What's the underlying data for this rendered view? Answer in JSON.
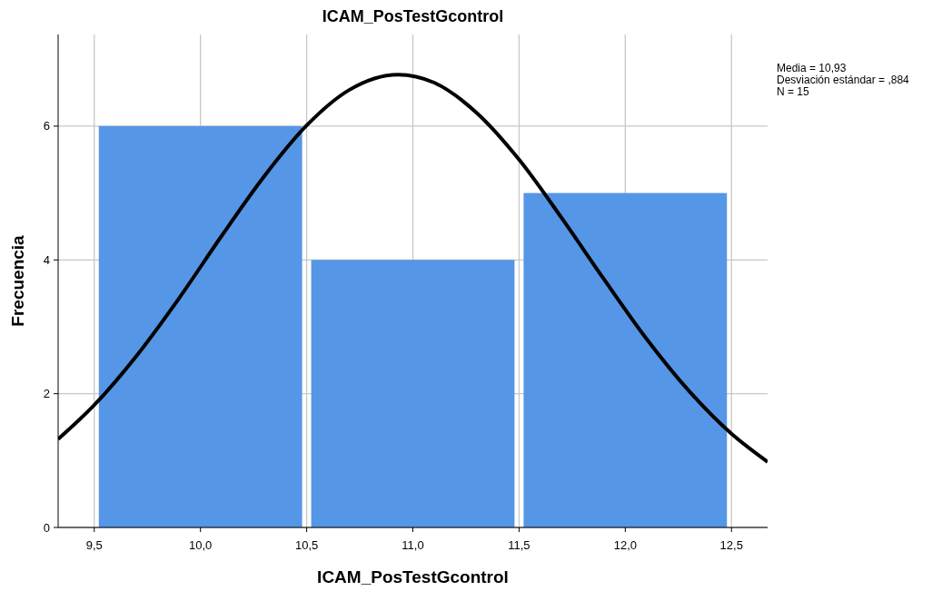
{
  "chart_data": {
    "type": "histogram",
    "title": "ICAM_PosTestGcontrol",
    "xlabel": "ICAM_PosTestGcontrol",
    "ylabel": "Frecuencia",
    "bins": [
      9.5,
      10.5,
      11.5,
      12.5
    ],
    "values": [
      6,
      4,
      5
    ],
    "color": "#5596e6",
    "series": [
      {
        "type": "line",
        "color": "#000000",
        "x": [
          9.33,
          9.5,
          9.7,
          9.9,
          10.1,
          10.3,
          10.5,
          10.7,
          10.93,
          11.1,
          11.3,
          11.5,
          11.7,
          11.9,
          12.1,
          12.3,
          12.5,
          12.67
        ],
        "values": [
          1.32,
          1.83,
          2.57,
          3.43,
          4.36,
          5.25,
          6.01,
          6.54,
          6.77,
          6.65,
          6.2,
          5.5,
          4.63,
          3.71,
          2.82,
          2.04,
          1.4,
          0.98
        ]
      }
    ],
    "xlim": [
      9.33,
      12.67
    ],
    "ylim": [
      0,
      7.37
    ],
    "xticks": [
      {
        "value": 9.5,
        "label": "9,5"
      },
      {
        "value": 10,
        "label": "10,0"
      },
      {
        "value": 10.5,
        "label": "10,5"
      },
      {
        "value": 11,
        "label": "11,0"
      },
      {
        "value": 11.5,
        "label": "11,5"
      },
      {
        "value": 12,
        "label": "12,0"
      },
      {
        "value": 12.5,
        "label": "12,5"
      }
    ],
    "yticks": [
      0,
      2,
      4,
      6
    ],
    "grid": true,
    "marker": "none",
    "line_style": "solid",
    "annotations": [
      "Media = 10,93",
      "Desviación estándar = ,884",
      "N = 15"
    ]
  }
}
